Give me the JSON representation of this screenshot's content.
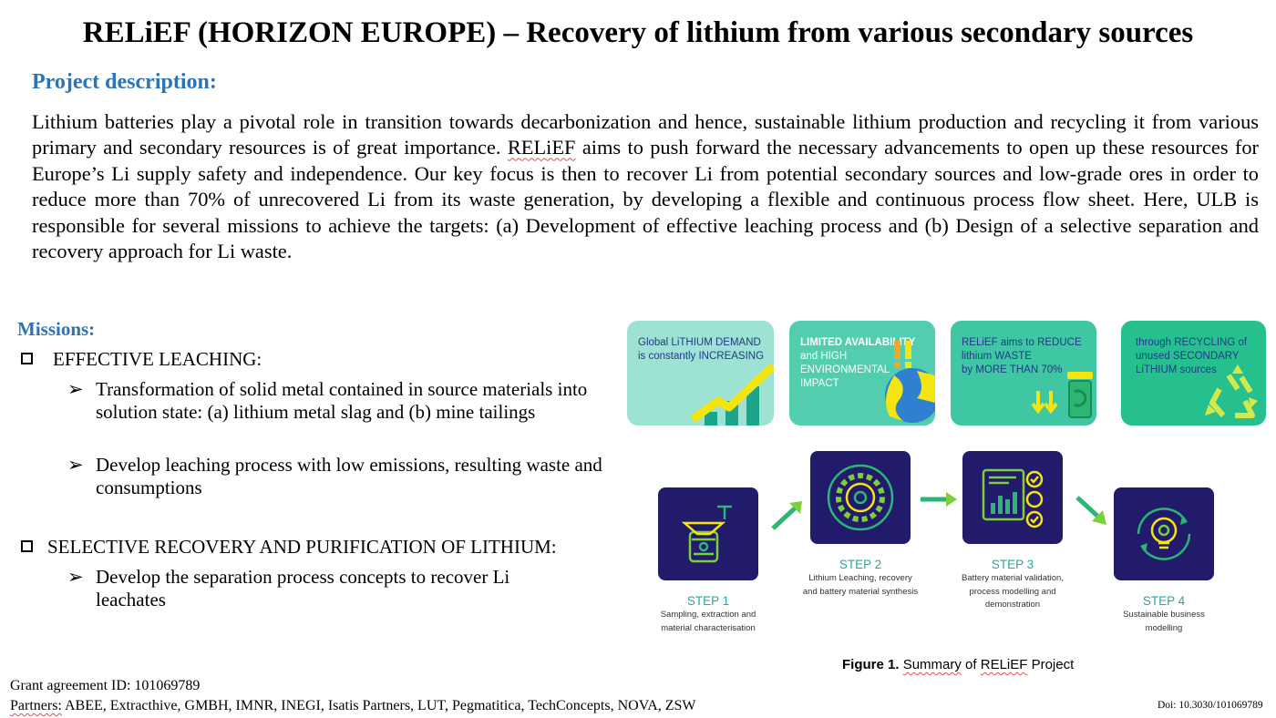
{
  "title": "RELiEF (HORIZON EUROPE) – Recovery of lithium from various secondary sources",
  "description": {
    "heading": "Project description:",
    "body_before": "Lithium batteries play a pivotal role in transition towards decarbonization and hence, sustainable lithium production and recycling it from various primary and secondary resources is of great importance. ",
    "body_project": "RELiEF",
    "body_after": " aims to push forward the necessary advancements to open up these resources for Europe’s Li supply safety and independence. Our key focus is then to recover Li from potential secondary sources and low-grade ores in order to reduce more than 70% of unrecovered Li from its waste generation, by developing a flexible and continuous process flow sheet. Here, ULB is responsible for several missions to achieve the targets: (a) Development of effective leaching process and (b) Design of a selective separation and recovery approach for Li waste."
  },
  "missions": {
    "heading": "Missions:",
    "box_bullet_icon": "square-bullet-icon",
    "arrow_bullet": "➢",
    "mission1": {
      "title": "EFFECTIVE LEACHING:",
      "items": [
        "Transformation of solid metal contained in source materials into solution state: (a) lithium metal slag and (b) mine tailings",
        "Develop leaching process with low emissions, resulting waste and consumptions"
      ]
    },
    "mission2": {
      "title": "SELECTIVE RECOVERY AND PURIFICATION OF LITHIUM:",
      "items": [
        "Develop the separation process concepts to recover Li leachates"
      ]
    }
  },
  "figure": {
    "cards": [
      {
        "lines": [
          "Global LiTHIUM DEMAND",
          "is constantly INCREASING"
        ],
        "icon": "growth-chart-icon",
        "bg": "#9de2d2"
      },
      {
        "lines": [
          "LIMITED AVAILABILITY",
          "and HIGH",
          "ENVIRONMENTAL",
          "IMPACT"
        ],
        "icon": "warning-globe-icon",
        "bg": "#52cdb0"
      },
      {
        "lines": [
          "RELiEF aims to REDUCE",
          "lithium WASTE",
          "by MORE THAN 70%"
        ],
        "icon": "waste-bin-icon",
        "bg": "#3ec7a2"
      },
      {
        "lines": [
          "through RECYCLING of",
          "unused SECONDARY",
          "LiTHIUM sources"
        ],
        "icon": "recycle-icon",
        "bg": "#26c08e"
      }
    ],
    "steps": [
      {
        "name": "STEP 1",
        "desc_lines": [
          "Sampling, extraction and",
          "material characterisation"
        ],
        "icon": "lab-flask-icon"
      },
      {
        "name": "STEP 2",
        "desc_lines": [
          "Lithium Leaching, recovery",
          "and battery material synthesis"
        ],
        "icon": "gear-circle-icon"
      },
      {
        "name": "STEP 3",
        "desc_lines": [
          "Battery material validation,",
          "process modelling and",
          "demonstration"
        ],
        "icon": "dashboard-icon"
      },
      {
        "name": "STEP 4",
        "desc_lines": [
          "Sustainable business",
          "modelling"
        ],
        "icon": "lightbulb-gear-icon"
      }
    ],
    "caption": {
      "label": "Figure 1.",
      "summary": "Summary",
      "of": " of ",
      "project": "RELiEF",
      "rest": " Project"
    },
    "colors": {
      "step_bg": "#221a6b",
      "step_text": "#28a7a0",
      "accent_yellow": "#f5e50f",
      "accent_green": "#2bb673"
    }
  },
  "footer": {
    "grant": "Grant agreement ID: 101069789",
    "partners_label": "Partners:",
    "partners_rest": " ABEE, Extracthive, GMBH, IMNR, INEGI, Isatis Partners, LUT, Pegmatitica, TechConcepts, NOVA, ZSW",
    "doi": "Doi: 10.3030/101069789"
  },
  "accent_colors": {
    "heading_blue": "#2e74b5",
    "spellcheck_underline": "#d9534f"
  }
}
